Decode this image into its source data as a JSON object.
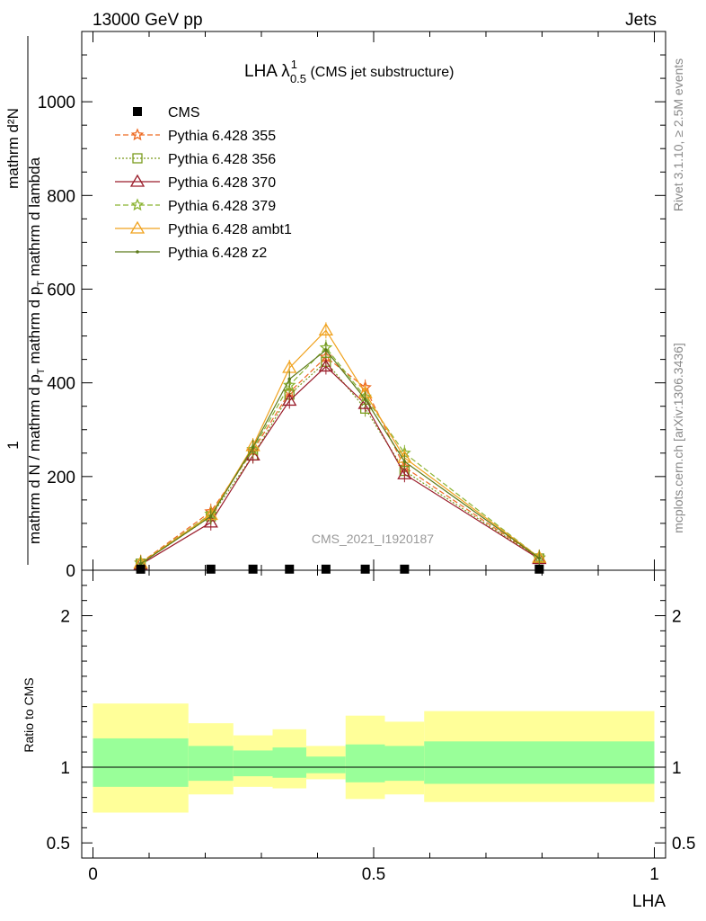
{
  "header": {
    "left": "13000 GeV pp",
    "right": "Jets"
  },
  "side_labels": {
    "rivet": "Rivet 3.1.10, ≥ 2.5M events",
    "mcplots": "mcplots.cern.ch [arXiv:1306.3436]"
  },
  "watermark": "CMS_2021_I1920187",
  "title": {
    "main": "LHA λ",
    "sup": "1",
    "sub": "0.5",
    "suffix": " (CMS jet substructure)"
  },
  "ylabel": {
    "numerator": "1",
    "top": "mathrm d²N",
    "upper": "mathrm d N / mathrm d p",
    "upper_sub": "T",
    "upper_tail": " mathrm d λ",
    "den_a": "mathrm d N / mathrm d p",
    "den_sub": "T",
    "den_b": " mathrm d p",
    "den_sub2": "T",
    "den_c": " mathrm d lambda",
    "full_top": "mathrm d²N",
    "full_mid": "mathrm d p",
    "full_mid_sub": "T",
    "full_mid_tail": " mathrm d lambda"
  },
  "ratio_ylabel": "Ratio to CMS",
  "xlabel": "LHA",
  "colors": {
    "cms": "#000000",
    "p355": "#ee6a22",
    "p356": "#7a9b1c",
    "p370": "#9a1c2a",
    "p379": "#8ab332",
    "ambt1": "#f0a21e",
    "z2": "#5c7a1a",
    "band_inner": "#99ff99",
    "band_outer": "#ffff99"
  },
  "chart_data": {
    "type": "line",
    "xlim": [
      -0.02,
      1.02
    ],
    "ylim_main": [
      0,
      1150
    ],
    "ylim_ratio": [
      0.4,
      2.3
    ],
    "x_ticks": [
      "0",
      "0.5",
      "1"
    ],
    "y_ticks_main": [
      "0",
      "200",
      "400",
      "600",
      "800",
      "1000"
    ],
    "y_ticks_ratio": [
      "0.5",
      "1",
      "2"
    ],
    "x": [
      0.085,
      0.21,
      0.285,
      0.35,
      0.415,
      0.485,
      0.555,
      0.795
    ],
    "data": {
      "name": "CMS",
      "y": [
        0.3,
        0.4,
        0.4,
        0.4,
        0.4,
        0.4,
        0.4,
        0.4
      ]
    },
    "series": [
      {
        "name": "Pythia 6.428 355",
        "color_key": "p355",
        "dash": "6,3",
        "marker": "star",
        "y": [
          16,
          125,
          255,
          380,
          455,
          390,
          220,
          26
        ]
      },
      {
        "name": "Pythia 6.428 356",
        "color_key": "p356",
        "dash": "2,2",
        "marker": "square",
        "y": [
          14,
          115,
          245,
          375,
          445,
          345,
          212,
          25
        ]
      },
      {
        "name": "Pythia 6.428 370",
        "color_key": "p370",
        "dash": "",
        "marker": "triangle",
        "y": [
          12,
          102,
          245,
          362,
          435,
          355,
          205,
          24
        ]
      },
      {
        "name": "Pythia 6.428 379",
        "color_key": "p379",
        "dash": "6,3",
        "marker": "star",
        "y": [
          15,
          120,
          258,
          395,
          475,
          370,
          250,
          27
        ]
      },
      {
        "name": "Pythia 6.428 ambt1",
        "color_key": "ambt1",
        "dash": "",
        "marker": "triangle",
        "y": [
          15,
          118,
          265,
          432,
          512,
          378,
          240,
          27
        ]
      },
      {
        "name": "Pythia 6.428 z2",
        "color_key": "z2",
        "dash": "",
        "marker": "dot",
        "y": [
          14,
          115,
          262,
          408,
          470,
          365,
          232,
          26
        ]
      }
    ],
    "ratio_bands": {
      "edges": [
        0.0,
        0.17,
        0.25,
        0.32,
        0.38,
        0.45,
        0.52,
        0.59,
        1.0
      ],
      "inner_low": [
        0.87,
        0.91,
        0.94,
        0.93,
        0.96,
        0.9,
        0.91,
        0.89
      ],
      "inner_high": [
        1.19,
        1.14,
        1.11,
        1.13,
        1.07,
        1.15,
        1.14,
        1.17
      ],
      "outer_low": [
        0.7,
        0.82,
        0.87,
        0.86,
        0.92,
        0.79,
        0.82,
        0.77
      ],
      "outer_high": [
        1.42,
        1.29,
        1.21,
        1.25,
        1.14,
        1.34,
        1.3,
        1.37
      ]
    }
  }
}
